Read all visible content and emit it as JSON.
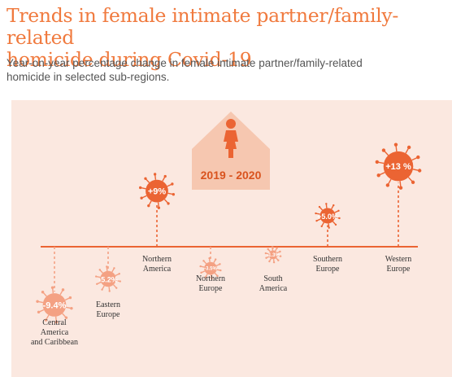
{
  "title": "Trends in female intimate partner/family-related\nhomicide during Covid-19",
  "subtitle": "Year-on-year percentage change in female intimate partner/family-related\nhomicide in selected sub-regions.",
  "house_label": "2019 - 2020",
  "colors": {
    "accent": "#f07a3e",
    "title": "#f07a3e",
    "subtitle": "#555555",
    "panel": "#fbe8e0",
    "house": "#f6c7b0",
    "positive_virus": "#eb6433",
    "negative_virus": "#f4a183",
    "axis": "#eb6433",
    "region_text": "#333333"
  },
  "chart_data": {
    "type": "scatter",
    "encoding": "virus icons placed above or below a baseline; distance from baseline and icon size encode the percentage change",
    "unit": "%",
    "baseline": 0,
    "regions": [
      {
        "name": "Central\nAmerica\nand Caribbean",
        "value": -9.4,
        "label": "-9.4%"
      },
      {
        "name": "Eastern\nEurope",
        "value": -5.2,
        "label": "-5.2%"
      },
      {
        "name": "Northern\nAmerica",
        "value": 9,
        "label": "+9%"
      },
      {
        "name": "Northern\nEurope",
        "value": -3.5,
        "label": "-3.5%"
      },
      {
        "name": "South\nAmerica",
        "value": -1.3,
        "label": "-1.3%"
      },
      {
        "name": "Southern\nEurope",
        "value": 5.0,
        "label": "+5.0%"
      },
      {
        "name": "Western\nEurope",
        "value": 13,
        "label": "+13 %"
      }
    ]
  }
}
